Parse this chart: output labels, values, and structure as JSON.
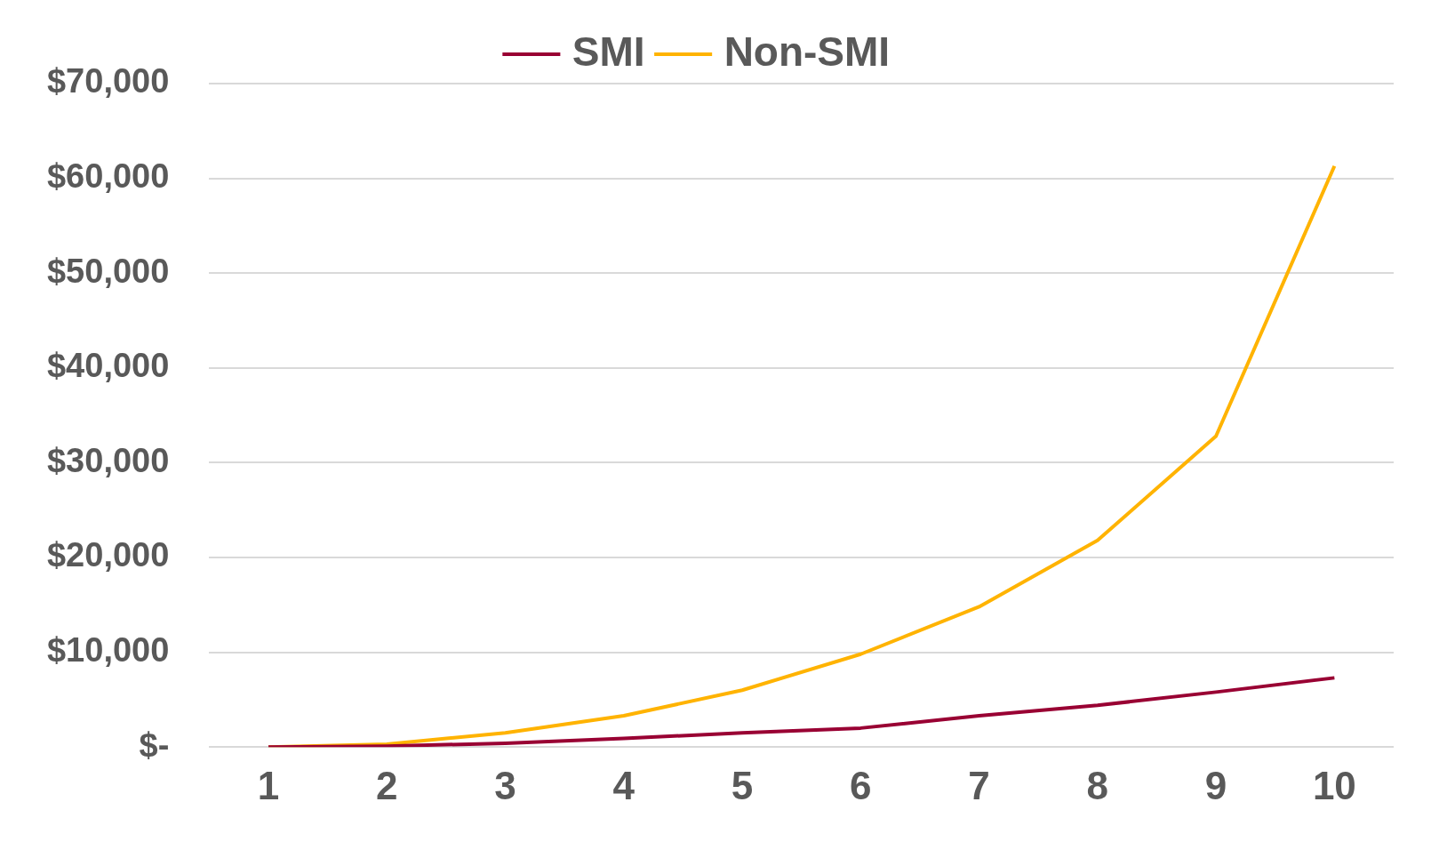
{
  "chart_data": {
    "type": "line",
    "categories": [
      "1",
      "2",
      "3",
      "4",
      "5",
      "6",
      "7",
      "8",
      "9",
      "10"
    ],
    "series": [
      {
        "name": "SMI",
        "color": "#990033",
        "values": [
          0,
          100,
          400,
          900,
          1500,
          2000,
          3300,
          4400,
          5800,
          7300
        ]
      },
      {
        "name": "Non-SMI",
        "color": "#ffb300",
        "values": [
          0,
          300,
          1500,
          3300,
          6000,
          9800,
          14800,
          21800,
          32800,
          61300
        ]
      }
    ],
    "ylim": [
      0,
      70000
    ],
    "yticks": [
      {
        "value": 0,
        "label": "$-"
      },
      {
        "value": 10000,
        "label": "$10,000"
      },
      {
        "value": 20000,
        "label": "$20,000"
      },
      {
        "value": 30000,
        "label": "$30,000"
      },
      {
        "value": 40000,
        "label": "$40,000"
      },
      {
        "value": 50000,
        "label": "$50,000"
      },
      {
        "value": 60000,
        "label": "$60,000"
      },
      {
        "value": 70000,
        "label": "$70,000"
      }
    ],
    "grid": "y",
    "legend": "top",
    "marker": "none",
    "line_style": "solid"
  }
}
